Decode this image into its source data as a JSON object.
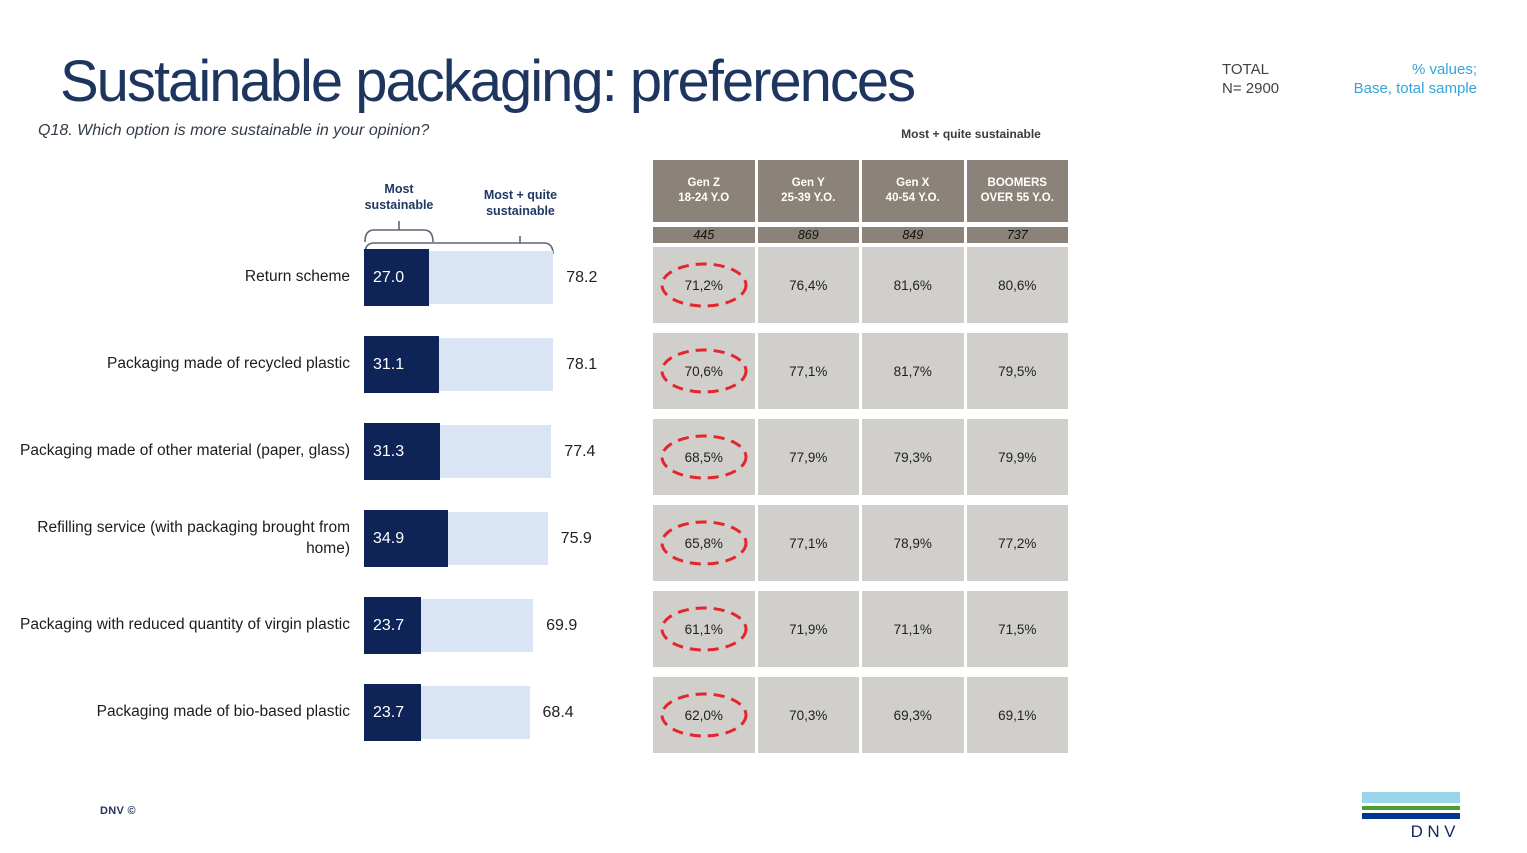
{
  "header": {
    "title": "Sustainable packaging: preferences",
    "question": "Q18. Which option is more sustainable in your opinion?",
    "total_label": "TOTAL",
    "n_label": "N= 2900",
    "note_line1": "% values;",
    "note_line2": "Base, total sample"
  },
  "legend": {
    "most": "Most\nsustainable",
    "total": "Most + quite\nsustainable"
  },
  "chart_data": [
    {
      "type": "bar",
      "orientation": "horizontal",
      "title": "",
      "legend": [
        "Most sustainable",
        "Most + quite sustainable"
      ],
      "legend_position": "top",
      "categories": [
        "Return scheme",
        "Packaging made of recycled plastic",
        "Packaging made of other material (paper, glass)",
        "Refilling service (with packaging brought from home)",
        "Packaging with reduced quantity of virgin plastic",
        "Packaging made of bio-based plastic"
      ],
      "series": [
        {
          "name": "Most sustainable",
          "values": [
            27.0,
            31.1,
            31.3,
            34.9,
            23.7,
            23.7
          ]
        },
        {
          "name": "Most + quite sustainable",
          "values": [
            78.2,
            78.1,
            77.4,
            75.9,
            69.9,
            68.4
          ]
        }
      ],
      "xlim": [
        0,
        100
      ],
      "grid": false,
      "value_labels": true
    },
    {
      "type": "table",
      "caption": "Most + quite sustainable",
      "columns": [
        {
          "label": "Gen Z\n18-24 Y.O",
          "base": "445"
        },
        {
          "label": "Gen Y\n25-39 Y.O.",
          "base": "869"
        },
        {
          "label": "Gen X\n40-54 Y.O.",
          "base": "849"
        },
        {
          "label": "BOOMERS\nOVER 55 Y.O.",
          "base": "737"
        }
      ],
      "rows": [
        [
          "71,2%",
          "76,4%",
          "81,6%",
          "80,6%"
        ],
        [
          "70,6%",
          "77,1%",
          "81,7%",
          "79,5%"
        ],
        [
          "68,5%",
          "77,9%",
          "79,3%",
          "79,9%"
        ],
        [
          "65,8%",
          "77,1%",
          "78,9%",
          "77,2%"
        ],
        [
          "61,1%",
          "71,9%",
          "71,1%",
          "71,5%"
        ],
        [
          "62,0%",
          "70,3%",
          "69,3%",
          "69,1%"
        ]
      ],
      "highlighted_column": 0,
      "highlight_style": "red-dashed-ellipse"
    }
  ],
  "footer": {
    "copyright": "DNV ©",
    "logo_text": "DNV"
  },
  "colors": {
    "title_navy": "#1e3560",
    "bar_dark": "#0e2356",
    "bar_light": "#d9e4f4",
    "note_blue": "#35a4d7",
    "brace_gray": "#5b6775",
    "table_header": "#8b8279",
    "table_cell": "#d1cfcc",
    "highlight_red": "#e3262c",
    "logo_light_blue": "#99d6ea",
    "logo_green": "#4a9e2f",
    "logo_dark_blue": "#003591"
  }
}
